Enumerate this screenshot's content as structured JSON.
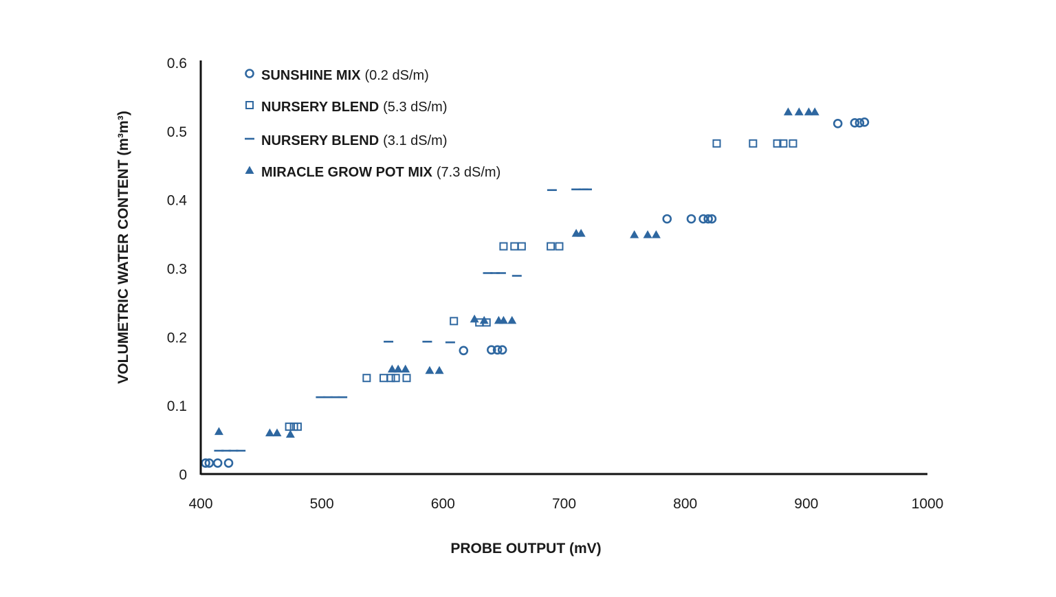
{
  "colors": {
    "marker": "#2e67a0",
    "axis": "#111111",
    "text": "#1a1a1a"
  },
  "chart_data": {
    "type": "scatter",
    "title": "",
    "xlabel": "PROBE OUTPUT (mV)",
    "ylabel": "VOLUMETRIC WATER CONTENT (m³m³)",
    "xlim": [
      400,
      1000
    ],
    "ylim": [
      0,
      0.6
    ],
    "xticks": [
      "400",
      "500",
      "600",
      "700",
      "800",
      "900",
      "1000"
    ],
    "yticks": [
      "0",
      "0.1",
      "0.2",
      "0.3",
      "0.4",
      "0.5",
      "0.6"
    ],
    "grid": false,
    "legend_position": "top-left",
    "series": [
      {
        "name": "SUNSHINE MIX",
        "condition": "(0.2 dS/m)",
        "marker": "circle",
        "points": [
          [
            404,
            0.016
          ],
          [
            407,
            0.016
          ],
          [
            414,
            0.016
          ],
          [
            423,
            0.016
          ],
          [
            617,
            0.18
          ],
          [
            640,
            0.181
          ],
          [
            645,
            0.181
          ],
          [
            649,
            0.181
          ],
          [
            785,
            0.372
          ],
          [
            805,
            0.372
          ],
          [
            815,
            0.372
          ],
          [
            819,
            0.372
          ],
          [
            822,
            0.372
          ],
          [
            926,
            0.511
          ],
          [
            940,
            0.512
          ],
          [
            944,
            0.512
          ],
          [
            948,
            0.513
          ]
        ]
      },
      {
        "name": "NURSERY BLEND",
        "condition": "(5.3 dS/m)",
        "marker": "square",
        "points": [
          [
            473,
            0.069
          ],
          [
            477,
            0.069
          ],
          [
            480,
            0.069
          ],
          [
            537,
            0.14
          ],
          [
            551,
            0.14
          ],
          [
            557,
            0.14
          ],
          [
            561,
            0.14
          ],
          [
            570,
            0.14
          ],
          [
            609,
            0.223
          ],
          [
            630,
            0.221
          ],
          [
            636,
            0.221
          ],
          [
            650,
            0.332
          ],
          [
            659,
            0.332
          ],
          [
            665,
            0.332
          ],
          [
            689,
            0.332
          ],
          [
            696,
            0.332
          ],
          [
            826,
            0.482
          ],
          [
            856,
            0.482
          ],
          [
            876,
            0.482
          ],
          [
            881,
            0.482
          ],
          [
            889,
            0.482
          ]
        ]
      },
      {
        "name": "NURSERY BLEND",
        "condition": "(3.1 dS/m)",
        "marker": "dash",
        "points": [
          [
            415,
            0.034
          ],
          [
            421,
            0.034
          ],
          [
            427,
            0.034
          ],
          [
            433,
            0.034
          ],
          [
            499,
            0.112
          ],
          [
            505,
            0.112
          ],
          [
            511,
            0.112
          ],
          [
            517,
            0.112
          ],
          [
            555,
            0.193
          ],
          [
            587,
            0.193
          ],
          [
            606,
            0.192
          ],
          [
            637,
            0.293
          ],
          [
            643,
            0.293
          ],
          [
            648,
            0.293
          ],
          [
            661,
            0.289
          ],
          [
            690,
            0.414
          ],
          [
            710,
            0.415
          ],
          [
            716,
            0.415
          ],
          [
            719,
            0.415
          ]
        ]
      },
      {
        "name": "MIRACLE GROW POT MIX",
        "condition": "(7.3 dS/m)",
        "marker": "triangle",
        "points": [
          [
            415,
            0.062
          ],
          [
            457,
            0.06
          ],
          [
            463,
            0.06
          ],
          [
            474,
            0.058
          ],
          [
            558,
            0.153
          ],
          [
            563,
            0.153
          ],
          [
            569,
            0.153
          ],
          [
            589,
            0.151
          ],
          [
            597,
            0.151
          ],
          [
            626,
            0.226
          ],
          [
            634,
            0.224
          ],
          [
            646,
            0.224
          ],
          [
            650,
            0.224
          ],
          [
            657,
            0.224
          ],
          [
            710,
            0.351
          ],
          [
            714,
            0.351
          ],
          [
            758,
            0.349
          ],
          [
            769,
            0.349
          ],
          [
            776,
            0.349
          ],
          [
            885,
            0.528
          ],
          [
            894,
            0.528
          ],
          [
            902,
            0.528
          ],
          [
            907,
            0.528
          ]
        ]
      }
    ]
  }
}
